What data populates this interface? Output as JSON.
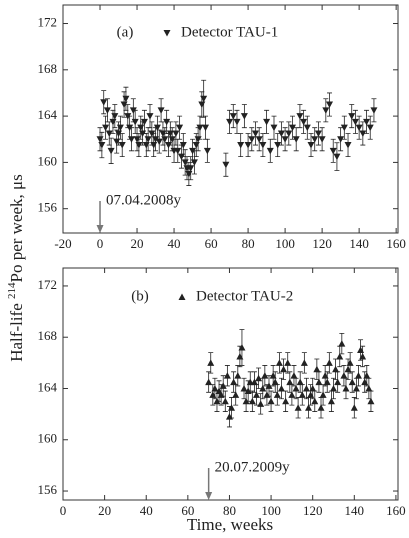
{
  "chart_data": [
    {
      "type": "scatter",
      "panel_label": "(a)",
      "marker": "triangle-down",
      "ylabel_parts": [
        "Half-life ",
        "214",
        "Po per week, μs"
      ],
      "xlim": [
        -20,
        161
      ],
      "xticks": [
        -20,
        0,
        20,
        40,
        60,
        80,
        100,
        120,
        140,
        160
      ],
      "ylim": [
        153.9,
        173.6
      ],
      "yticks": [
        156,
        160,
        164,
        168,
        172
      ],
      "annotation": {
        "text": "07.04.2008y",
        "x": 0
      },
      "series": [
        {
          "name": "Detector TAU-1",
          "color": "#222222",
          "x": [
            0,
            1,
            2,
            3,
            4,
            5,
            6,
            7,
            8,
            9,
            10,
            11,
            12,
            13,
            14,
            15,
            16,
            17,
            18,
            19,
            20,
            21,
            22,
            23,
            24,
            25,
            26,
            27,
            28,
            29,
            30,
            31,
            32,
            33,
            34,
            35,
            36,
            37,
            38,
            39,
            40,
            41,
            42,
            43,
            44,
            45,
            46,
            47,
            48,
            49,
            50,
            51,
            52,
            53,
            54,
            55,
            56,
            57,
            58,
            68,
            70,
            72,
            74,
            76,
            78,
            80,
            82,
            84,
            86,
            88,
            90,
            92,
            94,
            96,
            98,
            100,
            102,
            104,
            106,
            108,
            110,
            112,
            114,
            116,
            118,
            120,
            122,
            124,
            126,
            128,
            130,
            132,
            134,
            136,
            138,
            140,
            142,
            144,
            146,
            148
          ],
          "values": [
            162.0,
            161.5,
            165.2,
            163.0,
            164.5,
            162.5,
            161.0,
            163.5,
            164.0,
            161.8,
            162.5,
            163.0,
            161.5,
            165.0,
            165.5,
            164.0,
            163.0,
            162.0,
            164.5,
            163.5,
            162.0,
            161.5,
            163.0,
            162.5,
            163.5,
            161.5,
            162.0,
            164.0,
            162.5,
            161.5,
            162.0,
            163.0,
            161.8,
            164.5,
            162.5,
            162.0,
            163.5,
            161.5,
            162.5,
            162.0,
            161.0,
            162.5,
            161.0,
            163.0,
            160.5,
            161.5,
            160.0,
            159.5,
            159.0,
            159.5,
            161.0,
            160.0,
            161.5,
            162.0,
            163.0,
            165.0,
            165.5,
            163.0,
            161.0,
            159.8,
            163.5,
            164.0,
            163.5,
            161.5,
            164.0,
            161.5,
            162.0,
            162.5,
            162.0,
            161.5,
            163.5,
            161.0,
            163.0,
            161.5,
            162.5,
            162.0,
            162.5,
            163.0,
            162.0,
            164.0,
            163.5,
            163.0,
            161.5,
            162.0,
            162.5,
            162.0,
            164.5,
            165.0,
            161.0,
            160.5,
            162.0,
            163.0,
            161.5,
            164.0,
            163.5,
            163.0,
            162.5,
            163.5,
            163.0,
            164.5
          ],
          "errors": [
            1.0,
            1.1,
            1.0,
            1.0,
            1.0,
            1.0,
            1.1,
            1.0,
            1.0,
            1.0,
            1.0,
            1.0,
            1.0,
            1.1,
            1.0,
            1.0,
            1.0,
            1.0,
            1.0,
            1.0,
            1.0,
            1.0,
            1.0,
            1.0,
            1.0,
            1.0,
            1.0,
            1.0,
            1.0,
            1.0,
            1.0,
            1.0,
            1.0,
            1.0,
            1.0,
            1.0,
            1.0,
            1.0,
            1.0,
            1.0,
            1.0,
            1.0,
            1.0,
            1.0,
            1.0,
            1.0,
            1.1,
            1.0,
            1.0,
            1.0,
            1.0,
            1.0,
            1.0,
            1.0,
            1.0,
            1.1,
            1.6,
            1.0,
            1.0,
            1.0,
            1.0,
            1.0,
            1.0,
            1.0,
            1.0,
            1.0,
            1.0,
            1.0,
            1.0,
            1.0,
            1.0,
            1.0,
            1.0,
            1.0,
            1.0,
            1.0,
            1.0,
            1.0,
            1.0,
            1.0,
            1.0,
            1.0,
            1.0,
            1.0,
            1.0,
            1.0,
            1.0,
            1.0,
            1.0,
            1.2,
            1.0,
            1.0,
            1.0,
            1.0,
            1.0,
            1.0,
            1.0,
            1.0,
            1.0,
            1.0
          ]
        }
      ]
    },
    {
      "type": "scatter",
      "panel_label": "(b)",
      "marker": "triangle-up",
      "xlabel": "Time, weeks",
      "xlim": [
        0,
        161
      ],
      "xticks": [
        0,
        20,
        40,
        60,
        80,
        100,
        120,
        140,
        160
      ],
      "ylim": [
        155.3,
        173.4
      ],
      "yticks": [
        156,
        160,
        164,
        168,
        172
      ],
      "annotation": {
        "text": "20.07.2009y",
        "x": 70
      },
      "series": [
        {
          "name": "Detector TAU-2",
          "color": "#222222",
          "x": [
            70,
            71,
            72,
            73,
            74,
            75,
            76,
            77,
            78,
            79,
            80,
            81,
            82,
            83,
            84,
            85,
            86,
            87,
            88,
            89,
            90,
            91,
            92,
            93,
            94,
            95,
            96,
            97,
            98,
            99,
            100,
            101,
            102,
            103,
            104,
            105,
            106,
            107,
            108,
            109,
            110,
            111,
            112,
            113,
            114,
            115,
            116,
            117,
            118,
            119,
            120,
            121,
            122,
            123,
            124,
            125,
            126,
            127,
            128,
            129,
            130,
            131,
            132,
            133,
            134,
            135,
            136,
            137,
            138,
            139,
            140,
            141,
            142,
            143,
            144,
            145,
            146,
            147,
            148
          ],
          "values": [
            164.5,
            166.0,
            163.5,
            164.0,
            163.0,
            163.8,
            163.5,
            164.2,
            163.0,
            165.0,
            161.8,
            162.5,
            164.5,
            163.5,
            165.0,
            166.5,
            167.2,
            164.0,
            163.0,
            163.8,
            164.5,
            163.0,
            164.5,
            163.5,
            164.8,
            162.8,
            164.0,
            165.0,
            163.5,
            164.2,
            163.0,
            165.0,
            164.5,
            163.5,
            166.0,
            164.0,
            165.5,
            163.0,
            166.0,
            164.5,
            163.5,
            165.0,
            164.0,
            162.5,
            164.5,
            163.5,
            166.0,
            164.0,
            162.5,
            163.5,
            164.0,
            163.0,
            165.5,
            164.5,
            162.5,
            163.5,
            165.0,
            164.5,
            166.0,
            163.0,
            164.0,
            165.5,
            164.5,
            166.5,
            167.5,
            165.0,
            164.0,
            165.5,
            166.0,
            164.5,
            162.5,
            164.0,
            165.0,
            167.0,
            166.5,
            164.5,
            165.0,
            164.0,
            163.0
          ],
          "errors": [
            0.8,
            0.8,
            0.8,
            0.8,
            0.8,
            0.8,
            0.8,
            0.8,
            0.8,
            0.8,
            0.8,
            0.8,
            0.8,
            0.8,
            0.8,
            0.8,
            1.4,
            0.8,
            0.8,
            0.8,
            0.8,
            0.8,
            0.8,
            0.8,
            0.8,
            0.8,
            0.8,
            0.8,
            0.8,
            0.8,
            0.8,
            0.8,
            0.8,
            0.8,
            0.8,
            0.8,
            0.8,
            0.8,
            0.8,
            0.8,
            0.8,
            0.8,
            0.8,
            0.8,
            0.8,
            0.8,
            0.8,
            0.8,
            0.8,
            0.8,
            0.8,
            0.8,
            0.8,
            0.8,
            0.8,
            0.8,
            0.8,
            0.8,
            0.8,
            0.8,
            0.8,
            0.8,
            0.8,
            0.8,
            0.8,
            0.8,
            0.8,
            0.8,
            0.8,
            0.8,
            0.8,
            0.8,
            0.8,
            0.8,
            0.8,
            0.8,
            0.8,
            0.8,
            0.8
          ]
        }
      ]
    }
  ]
}
